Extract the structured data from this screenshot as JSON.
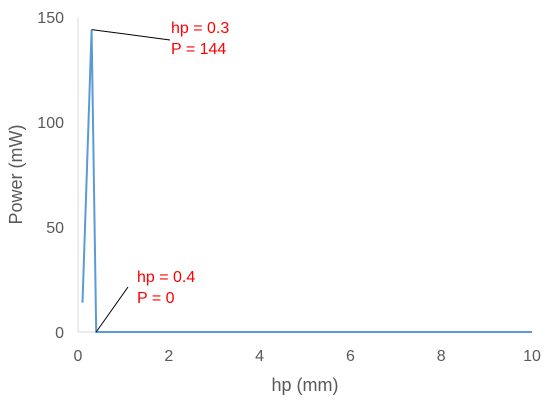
{
  "chart_data": {
    "type": "line",
    "title": "",
    "xlabel": "hp (mm)",
    "ylabel": "Power (mW)",
    "xlim": [
      0,
      10
    ],
    "ylim": [
      0,
      150
    ],
    "x_ticks": [
      "0",
      "2",
      "4",
      "6",
      "8",
      "10"
    ],
    "y_ticks": [
      "0",
      "50",
      "100",
      "150"
    ],
    "grid": false,
    "legend": "none",
    "series": [
      {
        "color": "#5b9bd5",
        "x": [
          0.1,
          0.3,
          0.4,
          0.5,
          1,
          2,
          3,
          4,
          5,
          6,
          7,
          8,
          9,
          10
        ],
        "y": [
          14,
          144,
          0,
          0,
          0,
          0,
          0,
          0,
          0,
          0,
          0,
          0,
          0,
          0
        ]
      }
    ],
    "annotations": [
      {
        "point": [
          0.3,
          144
        ],
        "lines": [
          "hp = 0.3",
          "P = 144"
        ],
        "color": "#ff0000"
      },
      {
        "point": [
          0.4,
          0
        ],
        "lines": [
          "hp = 0.4",
          "P = 0"
        ],
        "color": "#ff0000"
      }
    ],
    "axis_color": "#d9d9d9",
    "text_color": "#595959"
  }
}
